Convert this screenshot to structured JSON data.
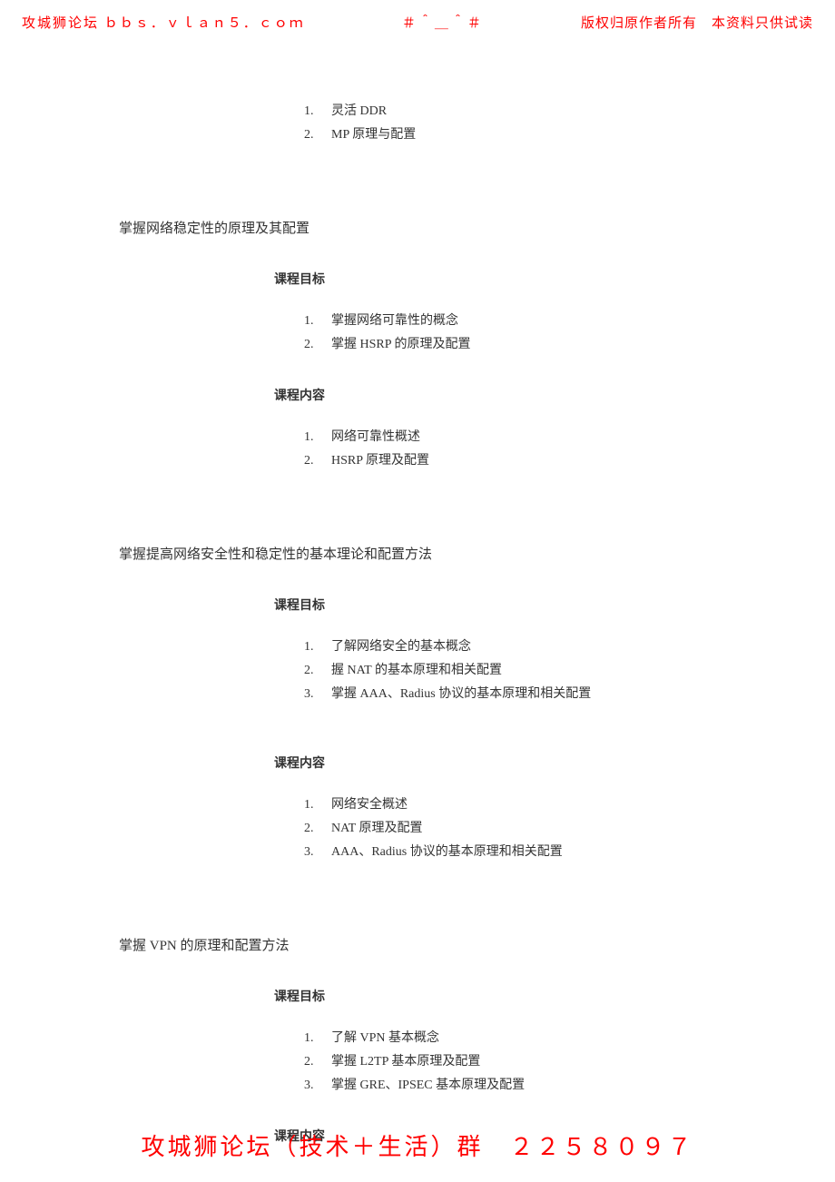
{
  "header": {
    "left": "攻城狮论坛  ｂｂｓ．ｖｌａｎ５．ｃｏｍ",
    "center": "＃＾＿＾＃",
    "right": "版权归原作者所有　本资料只供试读"
  },
  "intro": {
    "items": [
      {
        "n": "1.",
        "t": "灵活 DDR"
      },
      {
        "n": "2.",
        "t": "MP 原理与配置"
      }
    ]
  },
  "sections": [
    {
      "title": "掌握网络稳定性的原理及其配置",
      "goals_label": "课程目标",
      "goals": [
        {
          "n": "1.",
          "t": "掌握网络可靠性的概念"
        },
        {
          "n": "2.",
          "t": "掌握 HSRP 的原理及配置"
        }
      ],
      "content_label": "课程内容",
      "content": [
        {
          "n": "1.",
          "t": "网络可靠性概述"
        },
        {
          "n": "2.",
          "t": "HSRP 原理及配置"
        }
      ]
    },
    {
      "title": "掌握提高网络安全性和稳定性的基本理论和配置方法",
      "goals_label": "课程目标",
      "goals": [
        {
          "n": "1.",
          "t": "了解网络安全的基本概念"
        },
        {
          "n": "2.",
          "t": "握 NAT 的基本原理和相关配置"
        },
        {
          "n": "3.",
          "t": "掌握 AAA、Radius 协议的基本原理和相关配置"
        }
      ],
      "content_label": "课程内容",
      "content": [
        {
          "n": "1.",
          "t": "网络安全概述"
        },
        {
          "n": "2.",
          "t": "NAT 原理及配置"
        },
        {
          "n": "3.",
          "t": "AAA、Radius 协议的基本原理和相关配置"
        }
      ]
    },
    {
      "title": "掌握 VPN 的原理和配置方法",
      "goals_label": "课程目标",
      "goals": [
        {
          "n": "1.",
          "t": "了解 VPN 基本概念"
        },
        {
          "n": "2.",
          "t": "掌握 L2TP 基本原理及配置"
        },
        {
          "n": "3.",
          "t": "掌握 GRE、IPSEC 基本原理及配置"
        }
      ],
      "content_label": "课程内容",
      "content": []
    }
  ],
  "footer": "攻城狮论坛（技术＋生活）群　２２５８０９７",
  "colors": {
    "watermark": "#ff0000",
    "body_text": "#333333",
    "background": "#ffffff"
  }
}
